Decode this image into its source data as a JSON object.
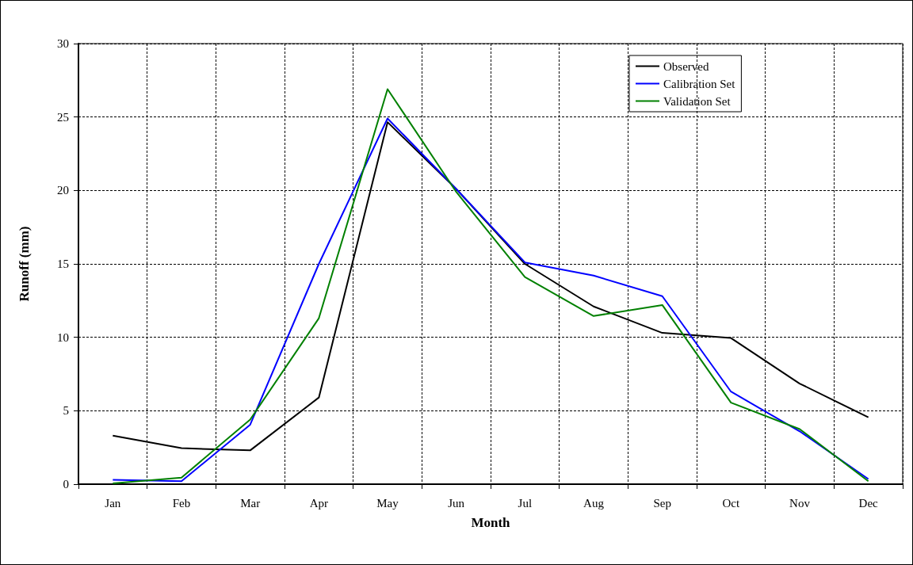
{
  "chart_data": {
    "type": "line",
    "xlabel": "Month",
    "ylabel": "Runoff (mm)",
    "categories": [
      "Jan",
      "Feb",
      "Mar",
      "Apr",
      "May",
      "Jun",
      "Jul",
      "Aug",
      "Sep",
      "Oct",
      "Nov",
      "Dec"
    ],
    "series": [
      {
        "name": "Observed",
        "color": "#000000",
        "values": [
          3.3,
          2.45,
          2.3,
          5.9,
          24.65,
          20.1,
          15.0,
          12.1,
          10.3,
          9.95,
          6.85,
          4.55
        ]
      },
      {
        "name": "Calibration Set",
        "color": "#0000ff",
        "values": [
          0.3,
          0.2,
          4.05,
          15.0,
          24.9,
          20.1,
          15.1,
          14.2,
          12.8,
          6.3,
          3.6,
          0.35
        ]
      },
      {
        "name": "Validation Set",
        "color": "#008000",
        "values": [
          0.05,
          0.45,
          4.4,
          11.3,
          26.9,
          19.9,
          14.1,
          11.45,
          12.2,
          5.55,
          3.75,
          0.2
        ]
      }
    ],
    "ylim": [
      0,
      30
    ],
    "yticks": [
      0,
      5,
      10,
      15,
      20,
      25,
      30
    ],
    "grid": true,
    "legend": "top right",
    "marker": "none",
    "line_style": "solid"
  }
}
